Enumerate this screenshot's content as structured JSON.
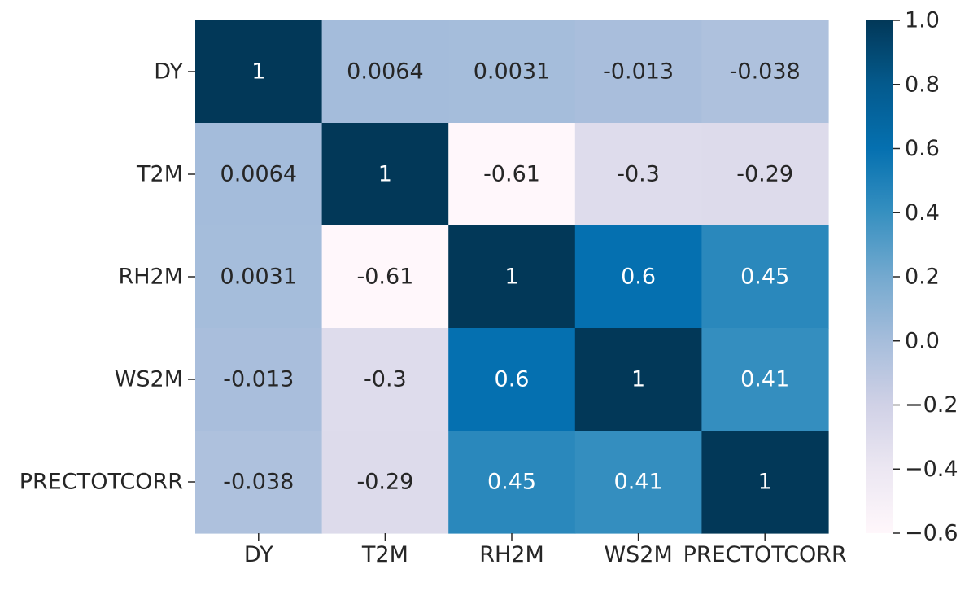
{
  "chart_data": {
    "type": "heatmap",
    "title": "",
    "xlabel": "",
    "ylabel": "",
    "row_labels": [
      "DY",
      "T2M",
      "RH2M",
      "WS2M",
      "PRECTOTCORR"
    ],
    "col_labels": [
      "DY",
      "T2M",
      "RH2M",
      "WS2M",
      "PRECTOTCORR"
    ],
    "values": [
      [
        1,
        0.0064,
        0.0031,
        -0.013,
        -0.038
      ],
      [
        0.0064,
        1,
        -0.61,
        -0.3,
        -0.29
      ],
      [
        0.0031,
        -0.61,
        1,
        0.6,
        0.45
      ],
      [
        -0.013,
        -0.3,
        0.6,
        1,
        0.41
      ],
      [
        -0.038,
        -0.29,
        0.45,
        0.41,
        1
      ]
    ],
    "annotations": [
      [
        "1",
        "0.0064",
        "0.0031",
        "-0.013",
        "-0.038"
      ],
      [
        "0.0064",
        "1",
        "-0.61",
        "-0.3",
        "-0.29"
      ],
      [
        "0.0031",
        "-0.61",
        "1",
        "0.6",
        "0.45"
      ],
      [
        "-0.013",
        "-0.3",
        "0.6",
        "1",
        "0.41"
      ],
      [
        "-0.038",
        "-0.29",
        "0.45",
        "0.41",
        "1"
      ]
    ],
    "colormap": "PuBu",
    "vmin": -0.6,
    "vmax": 1.0,
    "colorbar": {
      "ticks": [
        1.0,
        0.8,
        0.6,
        0.4,
        0.2,
        0.0,
        -0.2,
        -0.4,
        -0.6
      ],
      "tick_labels": [
        "1.0",
        "0.8",
        "0.6",
        "0.4",
        "0.2",
        "0.0",
        "−0.2",
        "−0.4",
        "−0.6"
      ],
      "placement": "right"
    }
  }
}
